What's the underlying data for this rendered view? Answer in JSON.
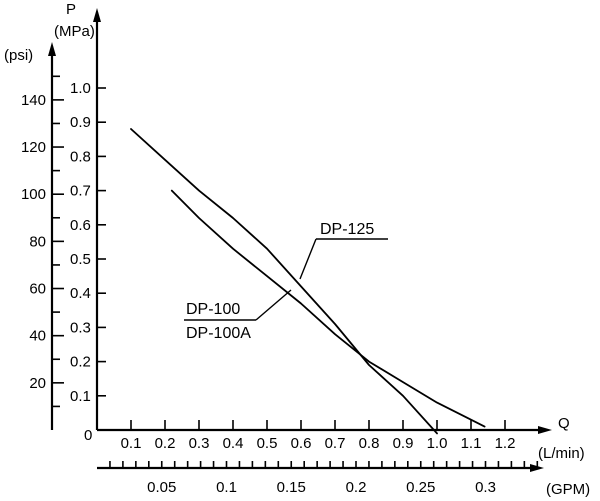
{
  "chart_data": {
    "type": "line",
    "title": "",
    "x_axis": {
      "label": "Q",
      "unit": "(L/min)",
      "ticks": [
        0.1,
        0.2,
        0.3,
        0.4,
        0.5,
        0.6,
        0.7,
        0.8,
        0.9,
        1.0,
        1.1,
        1.2
      ],
      "tick_labels": [
        "0.1",
        "0.2",
        "0.3",
        "0.4",
        "0.5",
        "0.6",
        "0.7",
        "0.8",
        "0.9",
        "1.0",
        "1.1",
        "1.2"
      ],
      "range": [
        0,
        1.3
      ]
    },
    "x2_axis": {
      "unit": "(GPM)",
      "major_ticks": [
        0.05,
        0.1,
        0.15,
        0.2,
        0.25,
        0.3
      ],
      "tick_labels": [
        "0.05",
        "0.1",
        "0.15",
        "0.2",
        "0.25",
        "0.3"
      ],
      "minor_step": 0.01,
      "range": [
        0,
        0.34
      ]
    },
    "y_axis": {
      "label": "P",
      "unit": "(MPa)",
      "ticks": [
        0.1,
        0.2,
        0.3,
        0.4,
        0.5,
        0.6,
        0.7,
        0.8,
        0.9,
        1.0
      ],
      "tick_labels": [
        "0.1",
        "0.2",
        "0.3",
        "0.4",
        "0.5",
        "0.6",
        "0.7",
        "0.8",
        "0.9",
        "1.0"
      ],
      "range": [
        0,
        1.05
      ]
    },
    "y2_axis": {
      "unit": "(psi)",
      "ticks": [
        20,
        40,
        60,
        80,
        100,
        120,
        140
      ],
      "tick_labels": [
        "20",
        "40",
        "60",
        "80",
        "100",
        "120",
        "140"
      ],
      "minor_step": 10,
      "range": [
        0,
        150
      ]
    },
    "origin_label": "0",
    "series": [
      {
        "name": "DP-125",
        "x": [
          0.1,
          0.2,
          0.3,
          0.4,
          0.5,
          0.6,
          0.7,
          0.8,
          0.9,
          1.0
        ],
        "y": [
          0.88,
          0.79,
          0.7,
          0.62,
          0.53,
          0.42,
          0.31,
          0.19,
          0.1,
          -0.01
        ]
      },
      {
        "name": "DP-100",
        "name_line2": "DP-100A",
        "x": [
          0.22,
          0.3,
          0.4,
          0.5,
          0.6,
          0.7,
          0.8,
          0.9,
          1.0,
          1.1,
          1.14
        ],
        "y": [
          0.7,
          0.62,
          0.53,
          0.45,
          0.37,
          0.28,
          0.2,
          0.14,
          0.08,
          0.03,
          0.01
        ]
      }
    ],
    "grid": false,
    "legend": "inline labels"
  }
}
